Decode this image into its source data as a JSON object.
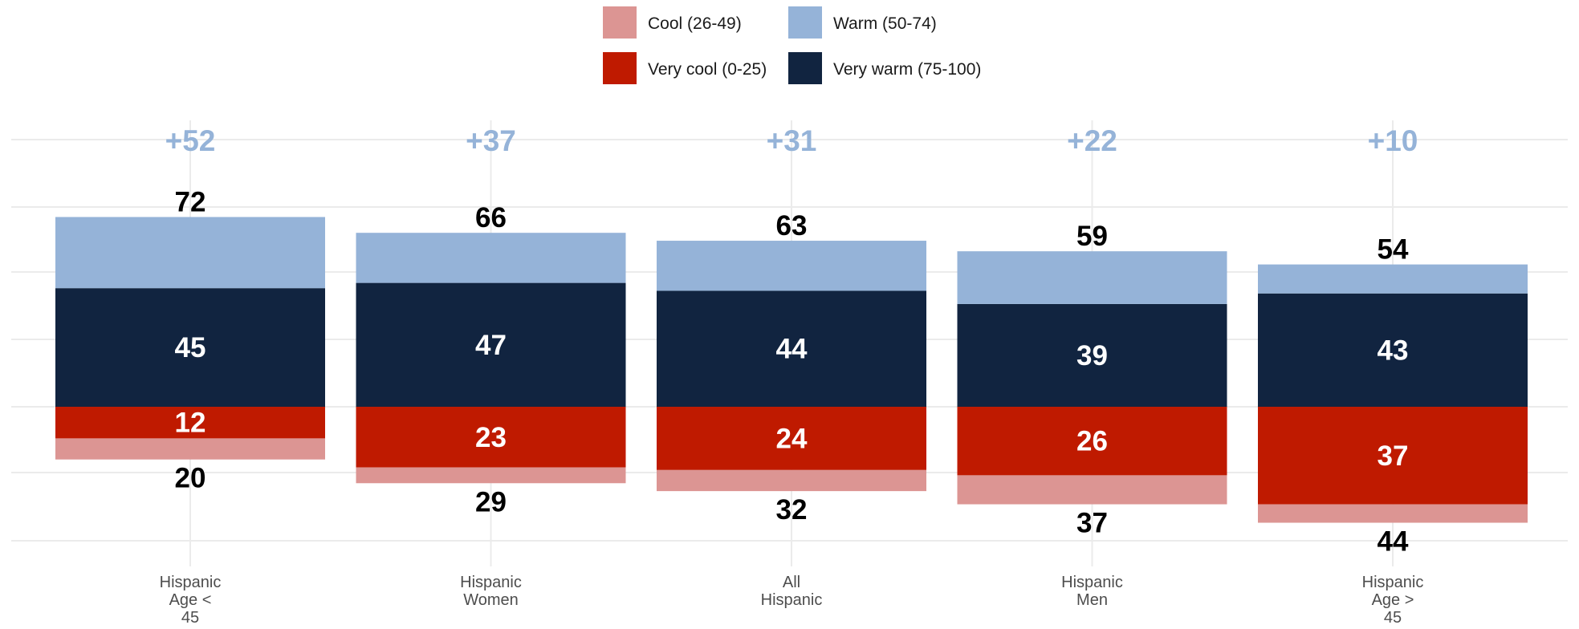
{
  "chart_data": {
    "type": "bar",
    "stacking": "diverging",
    "colors": {
      "cool": "#dc9593",
      "very_cool": "#bf1a00",
      "warm": "#95b3d8",
      "very_warm": "#112440",
      "net": "#95b3d8",
      "grid": "#ebebeb"
    },
    "legend": [
      {
        "key": "cool",
        "label": "Cool (26-49)"
      },
      {
        "key": "warm",
        "label": "Warm (50-74)"
      },
      {
        "key": "very_cool",
        "label": "Very cool (0-25)"
      },
      {
        "key": "very_warm",
        "label": "Very warm (75-100)"
      }
    ],
    "legend_position": "top",
    "grid": true,
    "ylim": [
      -48,
      95
    ],
    "categories": [
      {
        "lines": [
          "Hispanic",
          "Age <",
          "45"
        ],
        "very_warm": 45,
        "warm": 27,
        "very_cool": 12,
        "cool": 8,
        "warm_total": "72",
        "cool_total": "20",
        "net": "+52"
      },
      {
        "lines": [
          "Hispanic",
          "Women"
        ],
        "very_warm": 47,
        "warm": 19,
        "very_cool": 23,
        "cool": 6,
        "warm_total": "66",
        "cool_total": "29",
        "net": "+37"
      },
      {
        "lines": [
          "All",
          "Hispanic"
        ],
        "very_warm": 44,
        "warm": 19,
        "very_cool": 24,
        "cool": 8,
        "warm_total": "63",
        "cool_total": "32",
        "net": "+31"
      },
      {
        "lines": [
          "Hispanic",
          "Men"
        ],
        "very_warm": 39,
        "warm": 20,
        "very_cool": 26,
        "cool": 11,
        "warm_total": "59",
        "cool_total": "37",
        "net": "+22"
      },
      {
        "lines": [
          "Hispanic",
          "Age >",
          "45"
        ],
        "very_warm": 43,
        "warm": 11,
        "very_cool": 37,
        "cool": 7,
        "warm_total": "54",
        "cool_total": "44",
        "net": "+10"
      }
    ]
  }
}
